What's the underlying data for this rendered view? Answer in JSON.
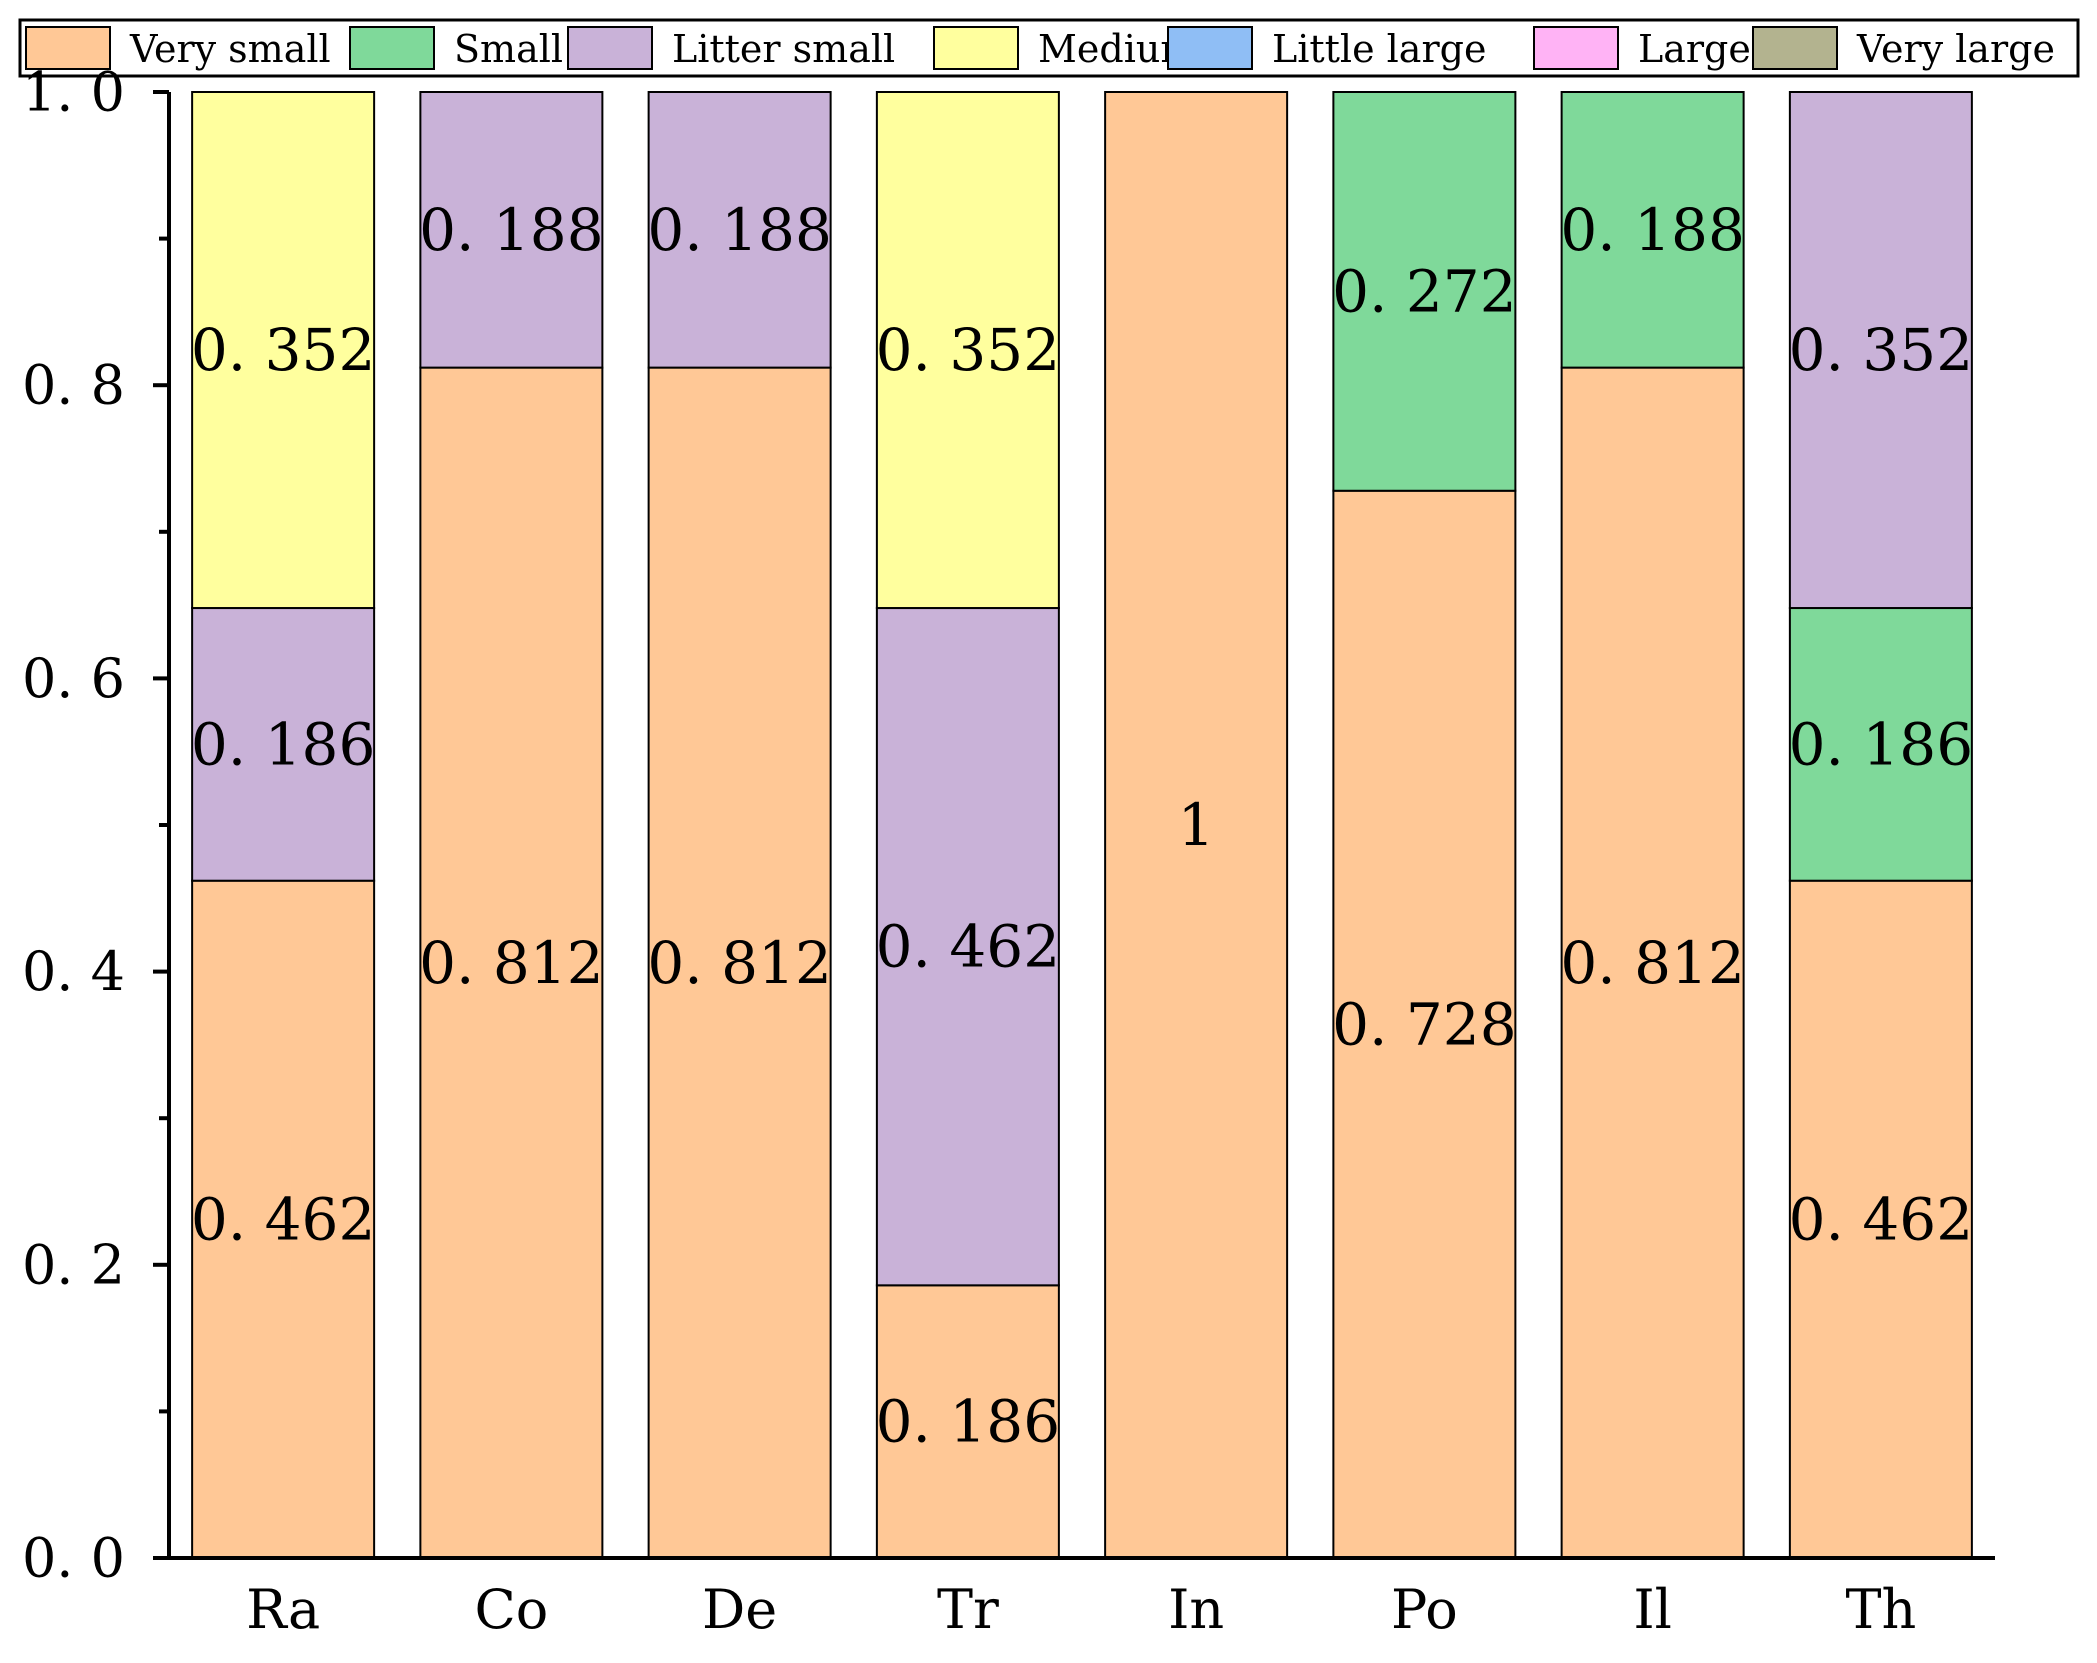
{
  "chart_data": {
    "type": "stacked-bar",
    "title": "",
    "xlabel": "",
    "ylabel": "",
    "ylim": [
      0,
      1.0
    ],
    "y_major_ticks": [
      0.0,
      0.2,
      0.4,
      0.6,
      0.8,
      1.0
    ],
    "y_tick_labels": [
      "0. 0",
      "0. 2",
      "0. 4",
      "0. 6",
      "0. 8",
      "1. 0"
    ],
    "y_minor_ticks": [
      0.1,
      0.3,
      0.5,
      0.7,
      0.9
    ],
    "legend_position": "top",
    "categories": [
      "Ra",
      "Co",
      "De",
      "Tr",
      "In",
      "Po",
      "Il",
      "Th"
    ],
    "series": [
      {
        "name": "Very small",
        "color": "#FFC896",
        "values": [
          0.462,
          0.812,
          0.812,
          0.186,
          1,
          0.728,
          0.812,
          0.462
        ],
        "labels": [
          "0. 462",
          "0. 812",
          "0. 812",
          "0. 186",
          "1",
          "0. 728",
          "0. 812",
          "0. 462"
        ]
      },
      {
        "name": "Small",
        "color": "#7FD99A",
        "values": [
          0,
          0,
          0,
          0,
          0,
          0.272,
          0.188,
          0.186
        ],
        "labels": [
          "",
          "",
          "",
          "",
          "",
          "0. 272",
          "0. 188",
          "0. 186"
        ]
      },
      {
        "name": "Litter small",
        "color": "#C9B2D8",
        "values": [
          0.186,
          0.188,
          0.188,
          0.462,
          0,
          0,
          0,
          0.352
        ],
        "labels": [
          "0. 186",
          "0. 188",
          "0. 188",
          "0. 462",
          "",
          "",
          "",
          "0. 352"
        ]
      },
      {
        "name": "Medium",
        "color": "#FFFF9E",
        "values": [
          0.352,
          0,
          0,
          0.352,
          0,
          0,
          0,
          0
        ],
        "labels": [
          "0. 352",
          "",
          "",
          "0. 352",
          "",
          "",
          "",
          ""
        ]
      },
      {
        "name": "Little large",
        "color": "#8FBEF5",
        "values": [
          0,
          0,
          0,
          0,
          0,
          0,
          0,
          0
        ],
        "labels": [
          "",
          "",
          "",
          "",
          "",
          "",
          "",
          ""
        ]
      },
      {
        "name": "Large",
        "color": "#FFB3F5",
        "values": [
          0,
          0,
          0,
          0,
          0,
          0,
          0,
          0
        ],
        "labels": [
          "",
          "",
          "",
          "",
          "",
          "",
          "",
          ""
        ]
      },
      {
        "name": "Very large",
        "color": "#B3B38F",
        "values": [
          0,
          0,
          0,
          0,
          0,
          0,
          0,
          0
        ],
        "labels": [
          "",
          "",
          "",
          "",
          "",
          "",
          "",
          ""
        ]
      }
    ]
  }
}
